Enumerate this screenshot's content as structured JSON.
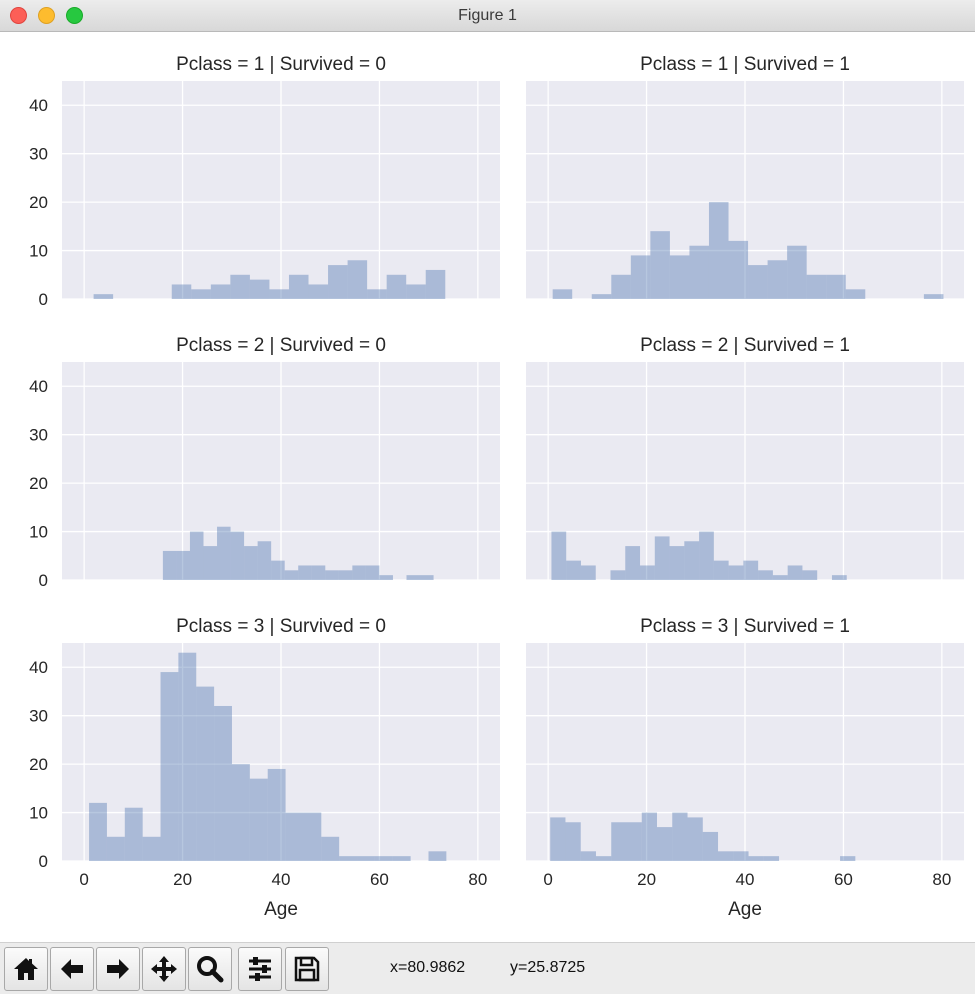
{
  "window": {
    "title": "Figure 1"
  },
  "toolbar": {
    "buttons": [
      {
        "name": "home-button",
        "icon": "home-icon"
      },
      {
        "name": "back-button",
        "icon": "arrow-left-icon"
      },
      {
        "name": "forward-button",
        "icon": "arrow-right-icon"
      },
      {
        "name": "pan-button",
        "icon": "move-icon"
      },
      {
        "name": "zoom-button",
        "icon": "search-icon"
      },
      {
        "name": "configure-subplots-button",
        "icon": "sliders-icon"
      },
      {
        "name": "save-button",
        "icon": "floppy-disk-icon"
      }
    ],
    "x_readout": "x=80.9862",
    "y_readout": "y=25.8725"
  },
  "colors": {
    "bar": "#4c72b0",
    "facet_background": "#eaeaf2",
    "grid": "#ffffff"
  },
  "chart_data": [
    {
      "type": "bar",
      "title": "Pclass = 1 | Survived = 0",
      "xlabel": "",
      "ylabel": "",
      "xlim": [
        -4.5,
        84.5
      ],
      "ylim": [
        0,
        45
      ],
      "xticks": [
        0,
        20,
        40,
        60,
        80
      ],
      "yticks": [
        0,
        10,
        20,
        30,
        40
      ],
      "grid": true,
      "bin_width": 3.97,
      "bin_starts": [
        1.92,
        5.89,
        9.86,
        13.83,
        17.8,
        21.77,
        25.74,
        29.71,
        33.68,
        37.65,
        41.62,
        45.59,
        49.56,
        53.53,
        57.5,
        61.47,
        65.44,
        69.41
      ],
      "values": [
        1,
        0,
        0,
        0,
        3,
        2,
        3,
        5,
        4,
        2,
        5,
        3,
        7,
        8,
        2,
        5,
        3,
        6
      ]
    },
    {
      "type": "bar",
      "title": "Pclass = 1 | Survived = 1",
      "xlabel": "",
      "ylabel": "",
      "xlim": [
        -4.5,
        84.5
      ],
      "ylim": [
        0,
        45
      ],
      "xticks": [
        0,
        20,
        40,
        60,
        80
      ],
      "yticks": [
        0,
        10,
        20,
        30,
        40
      ],
      "grid": true,
      "bin_width": 3.97,
      "bin_starts": [
        0.92,
        4.89,
        8.86,
        12.83,
        16.8,
        20.77,
        24.74,
        28.71,
        32.68,
        36.65,
        40.62,
        44.59,
        48.56,
        52.53,
        56.5,
        60.47,
        64.44,
        68.41,
        72.38,
        76.35
      ],
      "values": [
        2,
        0,
        1,
        5,
        9,
        14,
        9,
        11,
        20,
        12,
        7,
        8,
        11,
        5,
        5,
        2,
        0,
        0,
        0,
        1
      ]
    },
    {
      "type": "bar",
      "title": "Pclass = 2 | Survived = 0",
      "xlabel": "",
      "ylabel": "",
      "xlim": [
        -4.5,
        84.5
      ],
      "ylim": [
        0,
        45
      ],
      "xticks": [
        0,
        20,
        40,
        60,
        80
      ],
      "yticks": [
        0,
        10,
        20,
        30,
        40
      ],
      "grid": true,
      "bin_width": 2.75,
      "bin_starts": [
        16.0,
        18.75,
        21.5,
        24.25,
        27.0,
        29.75,
        32.5,
        35.25,
        38.0,
        40.75,
        43.5,
        46.25,
        49.0,
        51.75,
        54.5,
        57.25,
        60.0,
        62.75,
        65.5,
        68.25
      ],
      "values": [
        6,
        6,
        10,
        7,
        11,
        10,
        7,
        8,
        4,
        2,
        3,
        3,
        2,
        2,
        3,
        3,
        1,
        0,
        1,
        1
      ]
    },
    {
      "type": "bar",
      "title": "Pclass = 2 | Survived = 1",
      "xlabel": "",
      "ylabel": "",
      "xlim": [
        -4.5,
        84.5
      ],
      "ylim": [
        0,
        45
      ],
      "xticks": [
        0,
        20,
        40,
        60,
        80
      ],
      "yticks": [
        0,
        10,
        20,
        30,
        40
      ],
      "grid": true,
      "bin_width": 3.0,
      "bin_starts": [
        0.67,
        3.67,
        6.67,
        9.67,
        12.67,
        15.67,
        18.67,
        21.67,
        24.67,
        27.67,
        30.67,
        33.67,
        36.67,
        39.67,
        42.67,
        45.67,
        48.67,
        51.67,
        54.67,
        57.67
      ],
      "values": [
        10,
        4,
        3,
        0,
        2,
        7,
        3,
        9,
        7,
        8,
        10,
        4,
        3,
        4,
        2,
        1,
        3,
        2,
        0,
        1
      ]
    },
    {
      "type": "bar",
      "title": "Pclass = 3 | Survived = 0",
      "xlabel": "Age",
      "ylabel": "",
      "xlim": [
        -4.5,
        84.5
      ],
      "ylim": [
        0,
        45
      ],
      "xticks": [
        0,
        20,
        40,
        60,
        80
      ],
      "yticks": [
        0,
        10,
        20,
        30,
        40
      ],
      "grid": true,
      "bin_width": 3.63,
      "bin_starts": [
        1.0,
        4.63,
        8.26,
        11.89,
        15.52,
        19.15,
        22.78,
        26.41,
        30.04,
        33.67,
        37.3,
        40.93,
        44.56,
        48.19,
        51.82,
        55.45,
        59.08,
        62.71,
        66.34,
        69.97
      ],
      "values": [
        12,
        5,
        11,
        5,
        39,
        43,
        36,
        32,
        20,
        17,
        19,
        10,
        10,
        5,
        1,
        1,
        1,
        1,
        0,
        2
      ]
    },
    {
      "type": "bar",
      "title": "Pclass = 3 | Survived = 1",
      "xlabel": "Age",
      "ylabel": "",
      "xlim": [
        -4.5,
        84.5
      ],
      "ylim": [
        0,
        45
      ],
      "xticks": [
        0,
        20,
        40,
        60,
        80
      ],
      "yticks": [
        0,
        10,
        20,
        30,
        40
      ],
      "grid": true,
      "bin_width": 3.1,
      "bin_starts": [
        0.42,
        3.52,
        6.62,
        9.72,
        12.82,
        15.92,
        19.02,
        22.12,
        25.22,
        28.32,
        31.42,
        34.52,
        37.62,
        40.72,
        43.82,
        46.92,
        50.02,
        53.12,
        56.22,
        59.32
      ],
      "values": [
        9,
        8,
        2,
        1,
        8,
        8,
        10,
        7,
        10,
        9,
        6,
        2,
        2,
        1,
        1,
        0,
        0,
        0,
        0,
        1
      ]
    }
  ]
}
